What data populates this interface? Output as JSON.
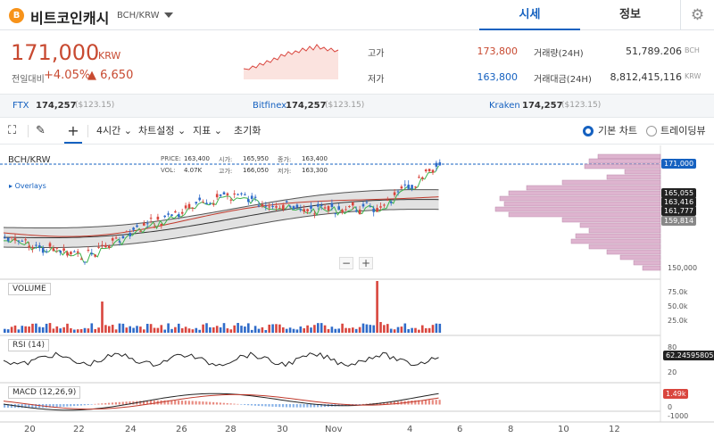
{
  "header": {
    "coin_icon": "bitcoin-cash-coin-icon",
    "coin_name": "비트코인캐시",
    "pair": "BCH/KRW",
    "tab_quote": "시세",
    "tab_info": "정보",
    "settings_icon": "gear-icon"
  },
  "price": {
    "current": "171,000",
    "unit": "KRW",
    "change_label": "전일대비",
    "change_pct": "+4.05%",
    "change_abs": "▲ 6,650"
  },
  "stats": {
    "high_label": "고가",
    "high": "173,800",
    "low_label": "저가",
    "low": "163,800",
    "vol_label": "거래량(24H)",
    "vol": "51,789.206",
    "vol_unit": "BCH",
    "amt_label": "거래대금(24H)",
    "amt": "8,812,415,116",
    "amt_unit": "KRW"
  },
  "exchanges": [
    {
      "name": "FTX",
      "price": "174,257",
      "usd": "($123.15)"
    },
    {
      "name": "Bitfinex",
      "price": "174,257",
      "usd": "($123.15)"
    },
    {
      "name": "Kraken",
      "price": "174,257",
      "usd": "($123.15)"
    }
  ],
  "toolbar": {
    "interval": "4시간",
    "chart_settings": "차트설정",
    "indicators": "지표",
    "reset": "초기화",
    "basic_chart": "기본 차트",
    "tradingview": "트레이딩뷰"
  },
  "chart": {
    "symbol": "BCH/KRW",
    "overlays": "Overlays",
    "ohlc": {
      "price_l": "PRICE:",
      "price": "163,400",
      "open_l": "시가:",
      "open": "165,950",
      "close_l": "종가:",
      "close": "163,400",
      "vol_l": "VOL:",
      "vol": "4.07K",
      "high_l": "고가:",
      "high": "166,050",
      "low_l": "저가:",
      "low": "163,300"
    },
    "current_tag": "171,000",
    "level_tags": [
      "165,055",
      "163,416",
      "161,777",
      "159,814"
    ],
    "axis_150": "150,000",
    "volume_label": "VOLUME",
    "vol_ticks": [
      "75.0k",
      "50.0k",
      "25.0k"
    ],
    "rsi_label": "RSI (14)",
    "rsi_ticks": [
      "80",
      "20"
    ],
    "rsi_value": "62.24595805",
    "macd_label": "MACD (12,26,9)",
    "macd_ticks": [
      "0",
      "-1000"
    ],
    "macd_value": "1.49k",
    "x_labels": [
      "20",
      "22",
      "24",
      "26",
      "28",
      "30",
      "Nov",
      "4",
      "6",
      "8",
      "10",
      "12"
    ],
    "colors": {
      "up": "#d9463e",
      "down": "#2f6bc9",
      "ma_fast": "#3cb44b",
      "ma_slow": "#c0392b",
      "band": "#555555",
      "profile": "#d9a7c7"
    },
    "zoom_out": "−",
    "zoom_in": "+"
  }
}
